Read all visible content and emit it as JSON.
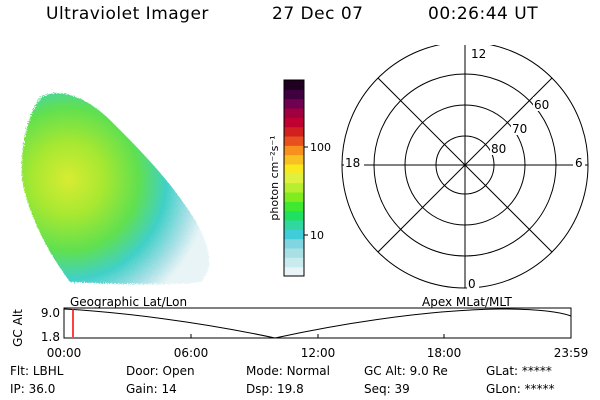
{
  "header": {
    "instrument": "Ultraviolet Imager",
    "date": "27 Dec 07",
    "time": "00:26:44 UT"
  },
  "colorbar": {
    "unit_label": "photon cm⁻²s⁻¹",
    "ticks": [
      "100",
      "10"
    ],
    "colors": [
      "#e8f4f6",
      "#c8ecee",
      "#a8e0e6",
      "#7fd6e0",
      "#40ccd8",
      "#30d8a0",
      "#20e060",
      "#40e830",
      "#80ec20",
      "#b8ee30",
      "#e0f040",
      "#f8e820",
      "#f8c020",
      "#f89020",
      "#e85020",
      "#d02020",
      "#c00030",
      "#a00040",
      "#700050",
      "#400040",
      "#200020"
    ]
  },
  "polar": {
    "labels": {
      "top": "12",
      "left": "18",
      "right": "6",
      "bottom": "0"
    },
    "rings": [
      "60",
      "70",
      "80"
    ]
  },
  "timeline": {
    "axis_title": "GC Alt",
    "y_ticks": [
      "9.0",
      "1.8"
    ],
    "left_label": "Geographic Lat/Lon",
    "right_label": "Apex MLat/MLT",
    "x_ticks": [
      "00:00",
      "06:00",
      "12:00",
      "18:00",
      "23:59"
    ]
  },
  "footer": {
    "row1": [
      {
        "label": "Flt:",
        "value": "LBHL"
      },
      {
        "label": "Door:",
        "value": "Open"
      },
      {
        "label": "Mode:",
        "value": "Normal"
      },
      {
        "label": "GC Alt:",
        "value": "9.0 Re"
      },
      {
        "label": "GLat:",
        "value": "*****"
      }
    ],
    "row2": [
      {
        "label": "IP:",
        "value": "36.0"
      },
      {
        "label": "Gain:",
        "value": "14"
      },
      {
        "label": "Dsp:",
        "value": "19.8"
      },
      {
        "label": "Seq:",
        "value": "39"
      },
      {
        "label": "GLon:",
        "value": "*****"
      }
    ]
  }
}
